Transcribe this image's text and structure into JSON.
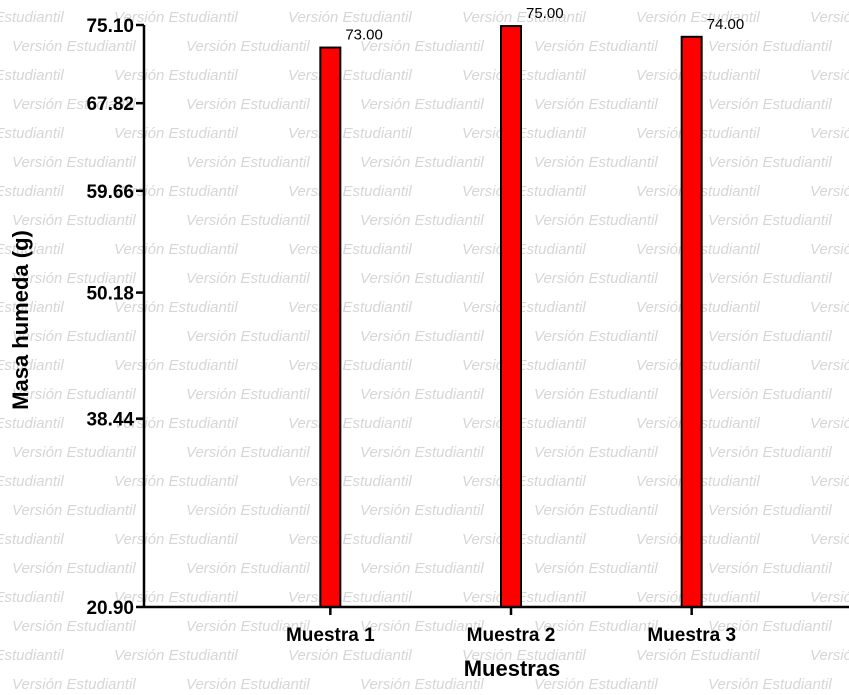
{
  "watermark": {
    "text": "Versión Estudiantil"
  },
  "chart_data": {
    "type": "bar",
    "categories": [
      "Muestra 1",
      "Muestra 2",
      "Muestra 3"
    ],
    "values": [
      73.0,
      75.0,
      74.0
    ],
    "value_labels": [
      "73.00",
      "75.00",
      "74.00"
    ],
    "xlabel": "Muestras",
    "ylabel": "Masa humeda (g)",
    "ylim": [
      20.9,
      75.1
    ],
    "y_ticks": [
      20.9,
      38.44,
      50.18,
      59.66,
      67.82,
      75.1
    ],
    "y_tick_labels": [
      "20.90",
      "38.44",
      "50.18",
      "59.66",
      "67.82",
      "75.10"
    ],
    "bar_color": "#ff0000",
    "bar_edge_color": "#000000",
    "grid": false,
    "legend": "none"
  }
}
